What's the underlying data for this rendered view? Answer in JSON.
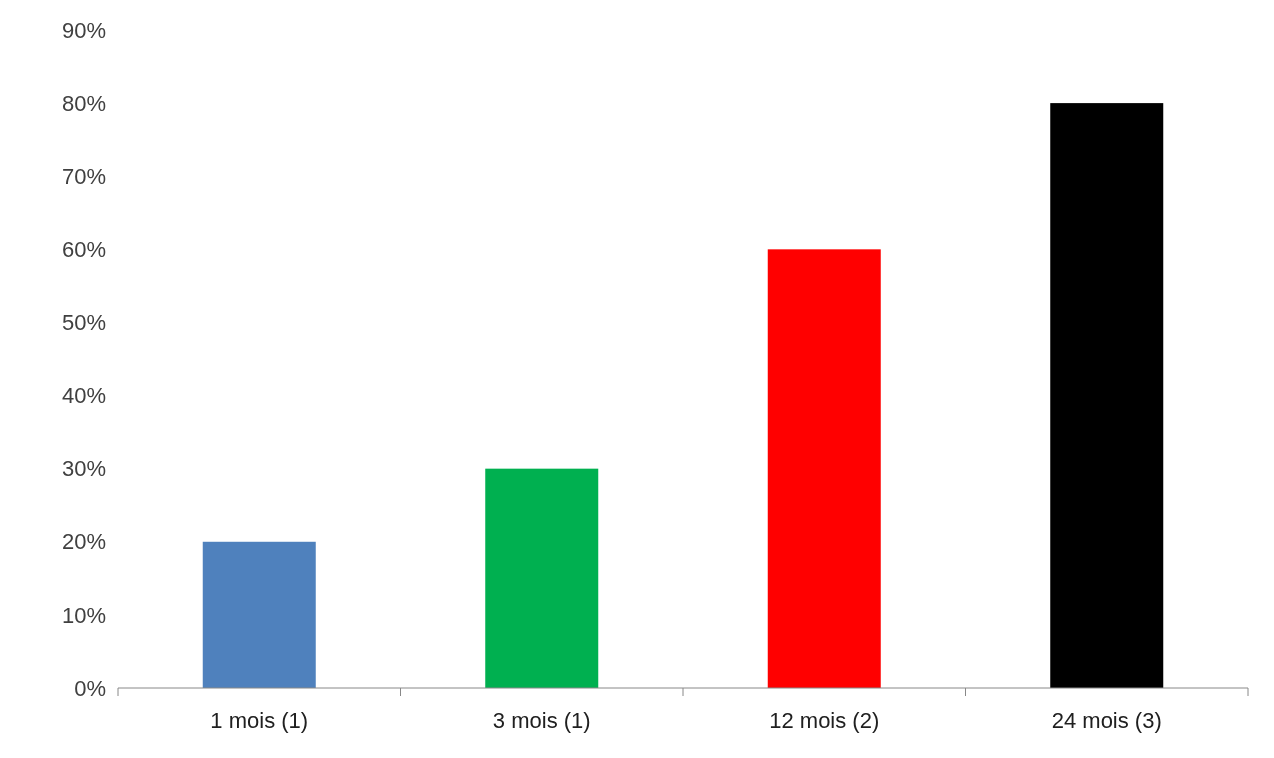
{
  "chart_data": {
    "type": "bar",
    "categories": [
      "1 mois (1)",
      "3 mois (1)",
      "12 mois (2)",
      "24 mois (3)"
    ],
    "values": [
      20,
      30,
      60,
      80
    ],
    "colors": [
      "#4f81bd",
      "#00b050",
      "#ff0000",
      "#000000"
    ],
    "ylim": [
      0,
      90
    ],
    "yticks": [
      {
        "value": 0,
        "label": "0%"
      },
      {
        "value": 10,
        "label": "10%"
      },
      {
        "value": 20,
        "label": "20%"
      },
      {
        "value": 30,
        "label": "30%"
      },
      {
        "value": 40,
        "label": "40%"
      },
      {
        "value": 50,
        "label": "50%"
      },
      {
        "value": 60,
        "label": "60%"
      },
      {
        "value": 70,
        "label": "70%"
      },
      {
        "value": 80,
        "label": "80%"
      },
      {
        "value": 90,
        "label": "90%"
      }
    ],
    "grid": false
  }
}
